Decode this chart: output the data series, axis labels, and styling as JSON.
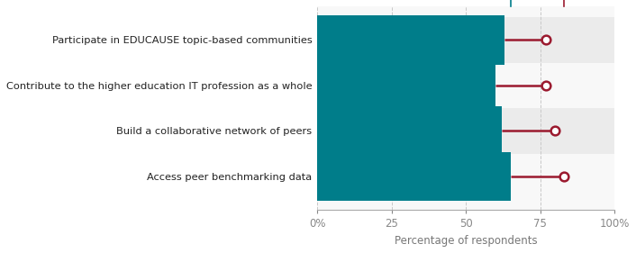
{
  "categories": [
    "Participate in EDUCAUSE topic-based communities",
    "Contribute to the higher education IT profession as a whole",
    "Build a collaborative network of peers",
    "Access peer benchmarking data"
  ],
  "other_dept": [
    65,
    62,
    60,
    63
  ],
  "central_it": [
    83,
    80,
    77,
    77
  ],
  "bar_color": "#007d8a",
  "line_color": "#9b1a2f",
  "marker_color": "#9b1a2f",
  "other_dept_color": "#007d8a",
  "central_it_color": "#9b1a2f",
  "xlabel": "Percentage of respondents",
  "xlim": [
    0,
    100
  ],
  "xticks": [
    0,
    25,
    50,
    75,
    100
  ],
  "xticklabels": [
    "0%",
    "25",
    "50",
    "75",
    "100%"
  ],
  "row_bg_shaded": "#ebebeb",
  "row_bg_white": "#f8f8f8",
  "bar_height": 0.6,
  "figsize": [
    7.06,
    2.81
  ],
  "dpi": 100
}
